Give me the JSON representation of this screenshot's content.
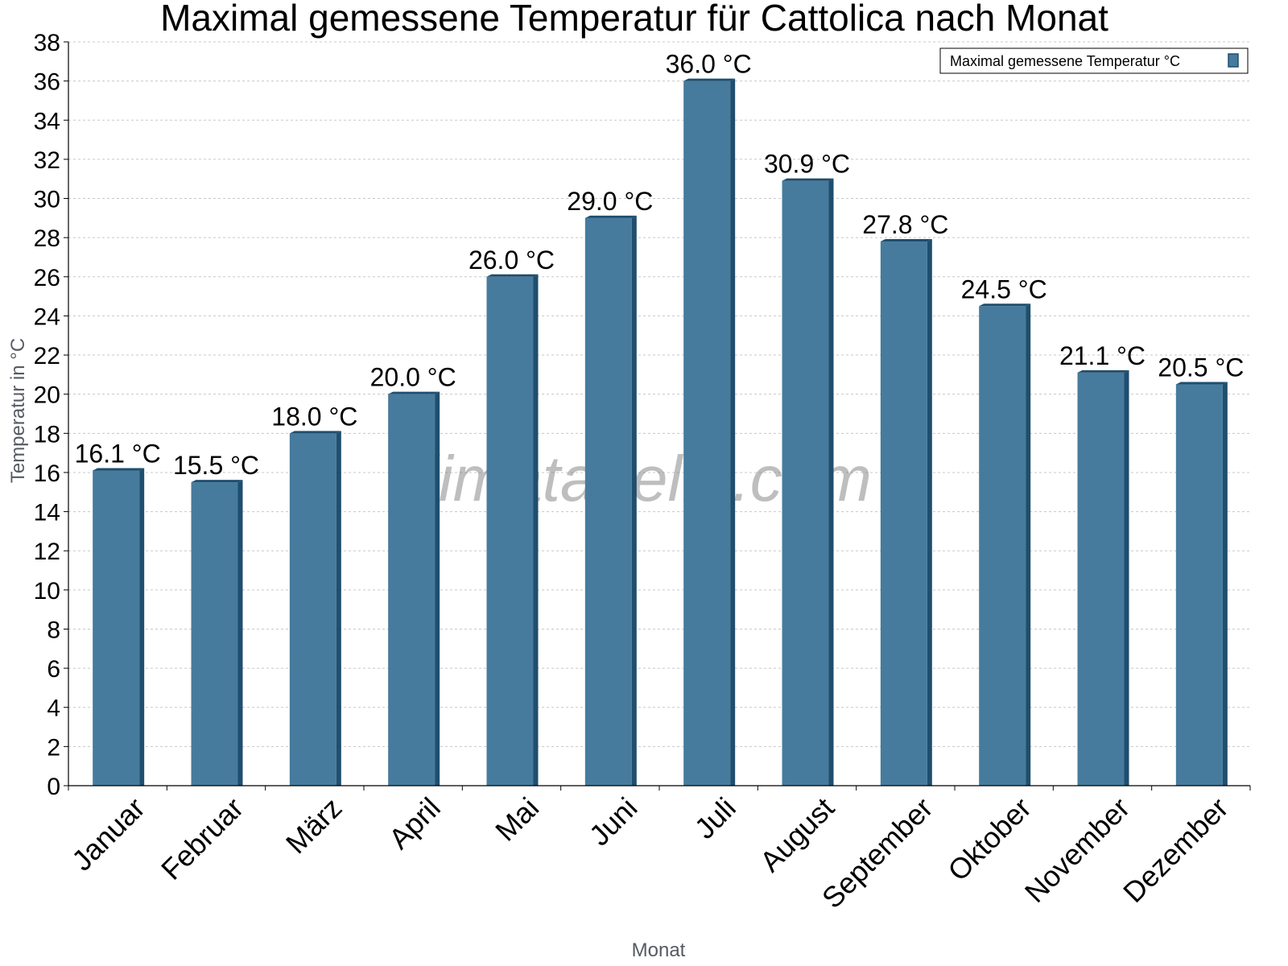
{
  "chart_data": {
    "type": "bar",
    "title": "Maximal gemessene Temperatur für Cattolica nach Monat",
    "xlabel": "Monat",
    "ylabel": "Temperatur in °C",
    "ylim": [
      0,
      38
    ],
    "ytick_step": 2,
    "grid": true,
    "legend_position": "top-right",
    "watermark": "klimatabelle.com",
    "categories": [
      "Januar",
      "Februar",
      "März",
      "April",
      "Mai",
      "Juni",
      "Juli",
      "August",
      "September",
      "Oktober",
      "November",
      "Dezember"
    ],
    "series": [
      {
        "name": "Maximal gemessene Temperatur °C",
        "values": [
          16.1,
          15.5,
          18.0,
          20.0,
          26.0,
          29.0,
          36.0,
          30.9,
          27.8,
          24.5,
          21.1,
          20.5
        ],
        "labels": [
          "16.1 °C",
          "15.5 °C",
          "18.0 °C",
          "20.0 °C",
          "26.0 °C",
          "29.0 °C",
          "36.0 °C",
          "30.9 °C",
          "27.8 °C",
          "24.5 °C",
          "21.1 °C",
          "20.5 °C"
        ],
        "color": "#467b9d",
        "shade_color": "#1f4e6e"
      }
    ]
  }
}
